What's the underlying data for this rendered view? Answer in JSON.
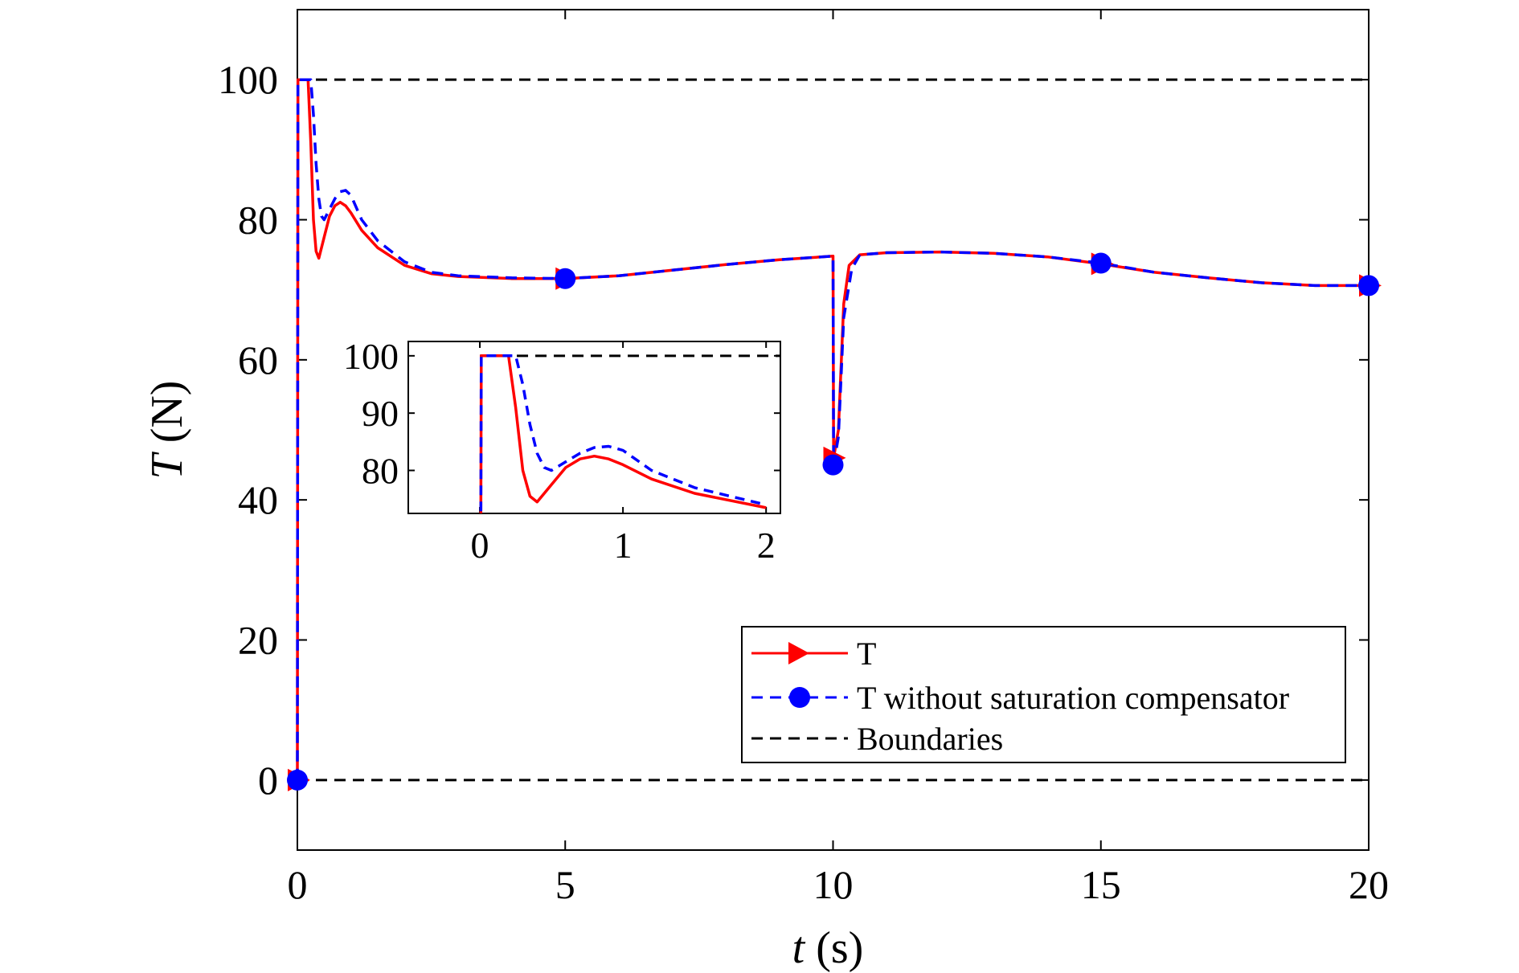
{
  "chart_data": {
    "type": "line",
    "xlabel_italic": "t",
    "xlabel_unit": "(s)",
    "ylabel_italic": "T",
    "ylabel_unit": "(N)",
    "xlim": [
      0,
      20
    ],
    "ylim": [
      -10,
      110
    ],
    "xticks": [
      0,
      5,
      10,
      15,
      20
    ],
    "yticks": [
      0,
      20,
      40,
      60,
      80,
      100
    ],
    "grid": false,
    "legend_position": "lower-right",
    "series": [
      {
        "name": "T",
        "color": "#ff0000",
        "style": "solid",
        "marker": "triangle-right",
        "marker_x": [
          0,
          5,
          10,
          15,
          20
        ],
        "points": [
          [
            0,
            0
          ],
          [
            0.01,
            100
          ],
          [
            0.2,
            100
          ],
          [
            0.25,
            91
          ],
          [
            0.3,
            80
          ],
          [
            0.35,
            75.5
          ],
          [
            0.4,
            74.5
          ],
          [
            0.5,
            77.5
          ],
          [
            0.6,
            80.5
          ],
          [
            0.7,
            82
          ],
          [
            0.8,
            82.5
          ],
          [
            0.9,
            82
          ],
          [
            1.0,
            81
          ],
          [
            1.2,
            78.5
          ],
          [
            1.5,
            76
          ],
          [
            2,
            73.5
          ],
          [
            2.5,
            72.3
          ],
          [
            3,
            71.9
          ],
          [
            4,
            71.6
          ],
          [
            5,
            71.6
          ],
          [
            6,
            72
          ],
          [
            7,
            72.8
          ],
          [
            8,
            73.6
          ],
          [
            9,
            74.3
          ],
          [
            10,
            74.8
          ],
          [
            10.01,
            46
          ],
          [
            10.1,
            50
          ],
          [
            10.2,
            68
          ],
          [
            10.3,
            73.5
          ],
          [
            10.5,
            75
          ],
          [
            11,
            75.3
          ],
          [
            12,
            75.4
          ],
          [
            13,
            75.2
          ],
          [
            14,
            74.7
          ],
          [
            15,
            73.7
          ],
          [
            16,
            72.5
          ],
          [
            17,
            71.7
          ],
          [
            18,
            71
          ],
          [
            19,
            70.6
          ],
          [
            20,
            70.6
          ]
        ]
      },
      {
        "name": "T without saturation compensator",
        "color": "#0000ff",
        "style": "dashed",
        "marker": "circle",
        "marker_x": [
          0,
          5,
          10,
          15,
          20
        ],
        "points": [
          [
            0,
            0
          ],
          [
            0.01,
            100
          ],
          [
            0.25,
            100
          ],
          [
            0.3,
            95
          ],
          [
            0.35,
            88
          ],
          [
            0.4,
            83
          ],
          [
            0.45,
            80.5
          ],
          [
            0.5,
            80
          ],
          [
            0.6,
            81.5
          ],
          [
            0.7,
            83
          ],
          [
            0.8,
            84
          ],
          [
            0.9,
            84.2
          ],
          [
            1.0,
            83.5
          ],
          [
            1.2,
            80
          ],
          [
            1.5,
            77
          ],
          [
            2,
            74
          ],
          [
            2.5,
            72.5
          ],
          [
            3,
            72
          ],
          [
            4,
            71.7
          ],
          [
            5,
            71.6
          ],
          [
            6,
            72
          ],
          [
            7,
            72.8
          ],
          [
            8,
            73.6
          ],
          [
            9,
            74.3
          ],
          [
            10,
            74.8
          ],
          [
            10.01,
            45
          ],
          [
            10.1,
            49
          ],
          [
            10.2,
            66
          ],
          [
            10.35,
            73
          ],
          [
            10.5,
            75
          ],
          [
            11,
            75.3
          ],
          [
            12,
            75.4
          ],
          [
            13,
            75.2
          ],
          [
            14,
            74.7
          ],
          [
            15,
            73.8
          ],
          [
            16,
            72.5
          ],
          [
            17,
            71.7
          ],
          [
            18,
            71
          ],
          [
            19,
            70.6
          ],
          [
            20,
            70.6
          ]
        ]
      },
      {
        "name": "Boundaries",
        "color": "#000000",
        "style": "dashed",
        "hlines": [
          0,
          100
        ]
      }
    ],
    "inset": {
      "xlim": [
        -0.5,
        2.1
      ],
      "ylim": [
        72.5,
        102.5
      ],
      "xticks": [
        0,
        1,
        2
      ],
      "yticks": [
        80,
        90,
        100
      ]
    }
  }
}
